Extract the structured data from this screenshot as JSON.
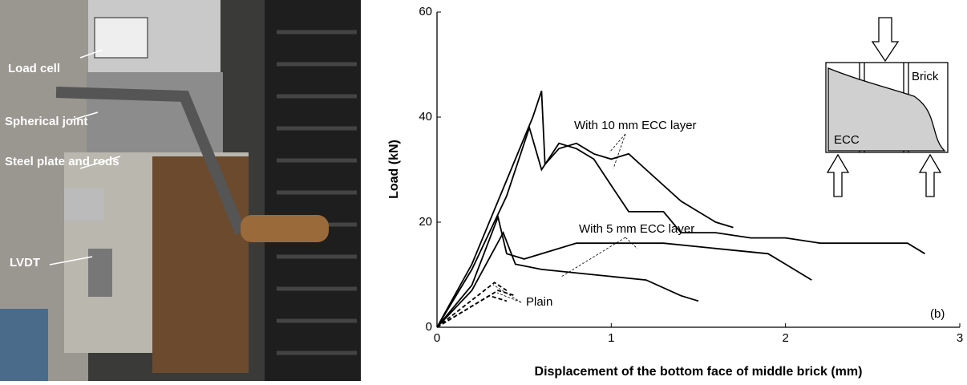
{
  "photo": {
    "labels": [
      "Load cell",
      "Spherical joint",
      "Steel plate and rods",
      "LVDT"
    ]
  },
  "inset": {
    "labels": [
      "Brick",
      "ECC"
    ]
  },
  "chart_data": {
    "type": "line",
    "xlabel": "Displacement of the bottom face of middle brick (mm)",
    "ylabel": "Load (kN)",
    "xlim": [
      0,
      3
    ],
    "ylim": [
      0,
      60
    ],
    "xticks": [
      0,
      1,
      2,
      3
    ],
    "yticks": [
      0,
      20,
      40,
      60
    ],
    "annotations": [
      "With 10 mm ECC layer",
      "With 5 mm ECC layer",
      "Plain",
      "(b)"
    ],
    "series": [
      {
        "color": "#000000",
        "x": [
          0,
          0.2,
          0.4,
          0.55,
          0.6,
          0.62,
          0.7,
          0.8,
          0.9,
          1.0,
          1.1,
          1.2,
          1.4,
          1.6,
          1.7
        ],
        "values": [
          0,
          12,
          28,
          40,
          45,
          31,
          34,
          35,
          33,
          32,
          33,
          30,
          24,
          20,
          19
        ]
      },
      {
        "color": "#000000",
        "x": [
          0,
          0.2,
          0.4,
          0.53,
          0.6,
          0.7,
          0.8,
          0.9,
          1.0,
          1.1,
          1.3,
          1.4,
          1.6,
          1.8,
          2.0,
          2.2,
          2.5,
          2.7,
          2.8
        ],
        "values": [
          0,
          11,
          25,
          38,
          30,
          35,
          34,
          32,
          27,
          22,
          22,
          18,
          18,
          17,
          17,
          16,
          16,
          16,
          14
        ]
      },
      {
        "color": "#000000",
        "x": [
          0,
          0.2,
          0.35,
          0.4,
          0.5,
          0.8,
          1.0,
          1.3,
          1.6,
          1.9,
          2.0,
          2.15
        ],
        "values": [
          0,
          8,
          21,
          14,
          13,
          16,
          16,
          16,
          15,
          14,
          12,
          9
        ]
      },
      {
        "color": "#000000",
        "x": [
          0,
          0.2,
          0.38,
          0.45,
          0.6,
          0.9,
          1.2,
          1.4,
          1.5
        ],
        "values": [
          0,
          7,
          18,
          12,
          11,
          10,
          9,
          6,
          5
        ]
      },
      {
        "color": "#000000",
        "dash": true,
        "x": [
          0,
          0.33,
          0.4
        ],
        "values": [
          0,
          8.5,
          7
        ]
      },
      {
        "color": "#000000",
        "dash": true,
        "x": [
          0,
          0.35,
          0.45
        ],
        "values": [
          0,
          7,
          6
        ]
      },
      {
        "color": "#000000",
        "dash": true,
        "x": [
          0,
          0.3,
          0.4
        ],
        "values": [
          0,
          6,
          5
        ]
      }
    ]
  }
}
